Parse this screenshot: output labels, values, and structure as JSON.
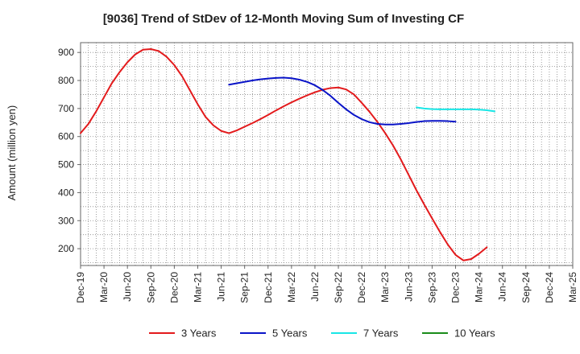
{
  "chart_data": {
    "type": "line",
    "title": "[9036]  Trend of StDev of 12-Month Moving Sum of Investing CF",
    "xlabel": "",
    "ylabel": "Amount (million yen)",
    "ylim": [
      140,
      935
    ],
    "yticks": [
      200,
      300,
      400,
      500,
      600,
      700,
      800,
      900
    ],
    "x_ticks": [
      "Dec-19",
      "Mar-20",
      "Jun-20",
      "Sep-20",
      "Dec-20",
      "Mar-21",
      "Jun-21",
      "Sep-21",
      "Dec-21",
      "Mar-22",
      "Jun-22",
      "Sep-22",
      "Dec-22",
      "Mar-23",
      "Jun-23",
      "Sep-23",
      "Dec-23",
      "Mar-24",
      "Jun-24",
      "Sep-24",
      "Dec-24",
      "Mar-25"
    ],
    "grid": true,
    "legend_position": "bottom",
    "series": [
      {
        "name": "3 Years",
        "color": "#e31a1c",
        "start_index": 0,
        "values": [
          612,
          645,
          690,
          740,
          790,
          830,
          865,
          893,
          910,
          912,
          905,
          885,
          855,
          815,
          765,
          715,
          670,
          640,
          620,
          612,
          622,
          635,
          648,
          662,
          677,
          693,
          708,
          722,
          735,
          747,
          758,
          767,
          773,
          775,
          768,
          750,
          720,
          688,
          652,
          612,
          568,
          518,
          463,
          408,
          357,
          308,
          260,
          215,
          178,
          158,
          163,
          182,
          205
        ]
      },
      {
        "name": "5 Years",
        "color": "#0a14c8",
        "start_index": 19,
        "values": [
          785,
          790,
          795,
          800,
          804,
          807,
          809,
          810,
          808,
          803,
          795,
          783,
          766,
          745,
          720,
          697,
          677,
          662,
          651,
          645,
          643,
          643,
          645,
          648,
          652,
          655,
          656,
          656,
          655,
          653
        ]
      },
      {
        "name": "7 Years",
        "color": "#19e6e6",
        "start_index": 43,
        "values": [
          704,
          700,
          698,
          697,
          697,
          697,
          697,
          697,
          696,
          694,
          690
        ]
      },
      {
        "name": "10 Years",
        "color": "#1a8c1a",
        "start_index": 0,
        "values": []
      }
    ]
  }
}
